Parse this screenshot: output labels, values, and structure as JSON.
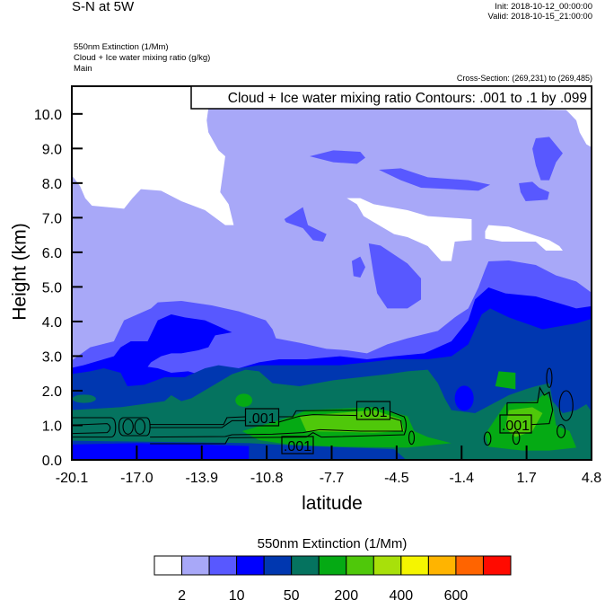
{
  "header": {
    "title": "S-N at 5W",
    "init": "Init: 2018-10-12_00:00:00",
    "valid": "Valid: 2018-10-15_21:00:00",
    "fields": [
      "550nm Extinction   (1/Mm)",
      "Cloud + Ice water mixing ratio   (g/kg)",
      "Main"
    ],
    "cross_section": "Cross-Section: (269,231) to (269,485)"
  },
  "chart_data": {
    "type": "heatmap",
    "subtype": "filled contour cross-section with line contours",
    "title": "S-N at 5W",
    "xlabel": "latitude",
    "ylabel": "Height (km)",
    "xlim": [
      -20.1,
      4.8
    ],
    "ylim": [
      0,
      10.8
    ],
    "x_ticks": [
      "-20.1",
      "-17.0",
      "-13.9",
      "-10.8",
      "-7.7",
      "-4.5",
      "-1.4",
      "1.7",
      "4.8"
    ],
    "y_ticks": [
      "0.0",
      "1.0",
      "2.0",
      "3.0",
      "4.0",
      "5.0",
      "6.0",
      "7.0",
      "8.0",
      "9.0",
      "10.0"
    ],
    "y_tick_values": [
      0,
      1,
      2,
      3,
      4,
      5,
      6,
      7,
      8,
      9,
      10
    ],
    "fill_field": "550nm Extinction (1/Mm)",
    "colorbar": {
      "title": "550nm Extinction  (1/Mm)",
      "colors": [
        "#ffffff",
        "#a8a8f8",
        "#5858ff",
        "#0000ff",
        "#0037b0",
        "#05735f",
        "#05aa14",
        "#4fc80a",
        "#a8e00a",
        "#f5f500",
        "#ffb400",
        "#ff6400",
        "#ff0a00"
      ],
      "labels": [
        "2",
        "10",
        "50",
        "200",
        "400",
        "600"
      ],
      "label_boundary_index": [
        1,
        3,
        5,
        7,
        9,
        11
      ]
    },
    "contour_legend": "Cloud + Ice water mixing ratio Contours: .001 to .1 by .099",
    "contour_labels": [
      ".001",
      ".001",
      ".001",
      ".001"
    ]
  }
}
